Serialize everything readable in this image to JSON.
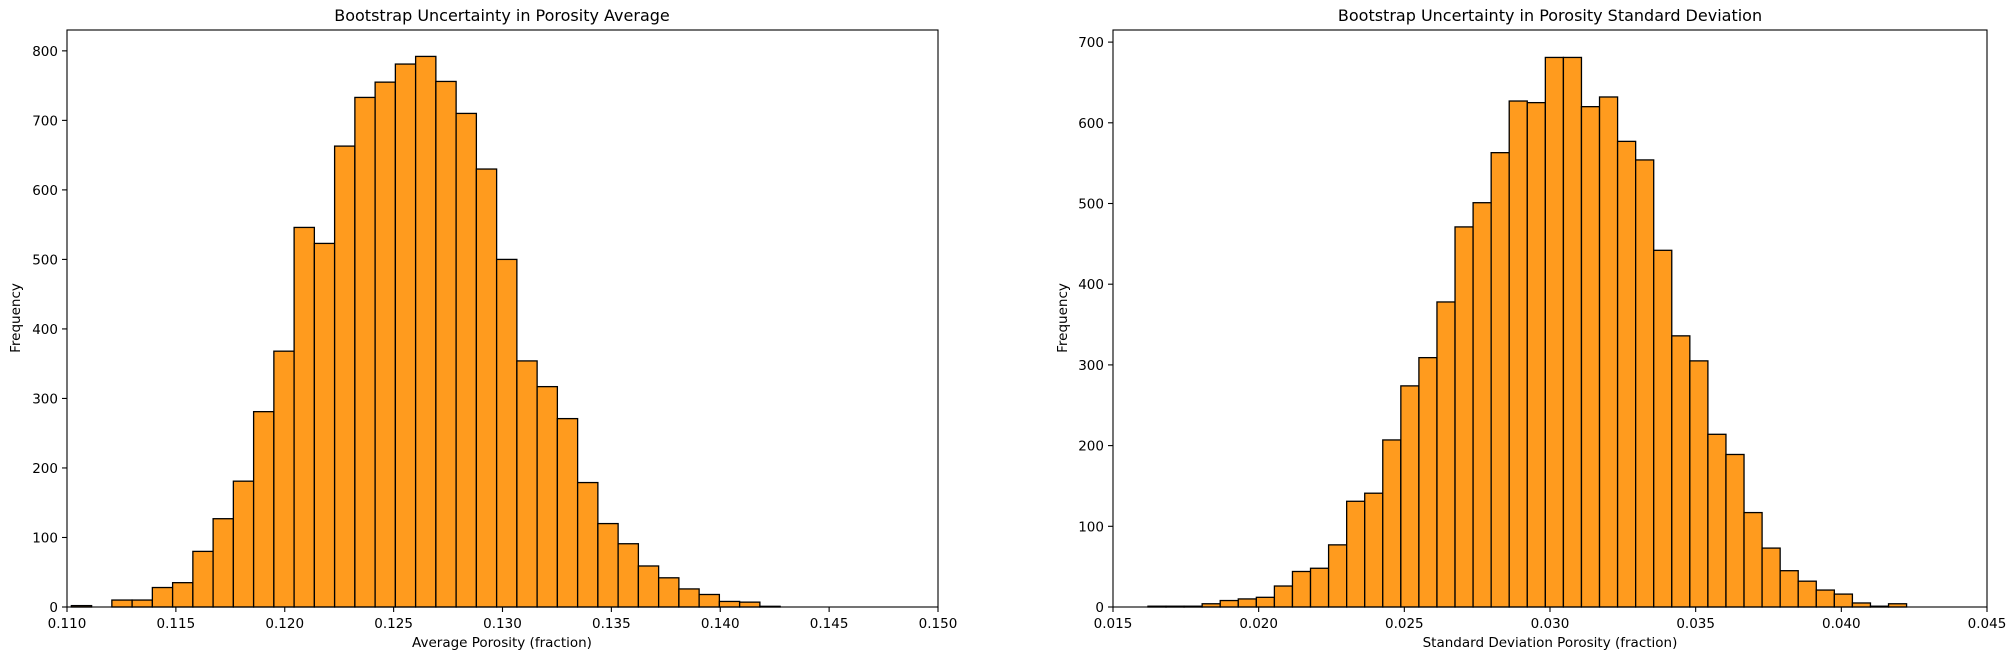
{
  "chart_data": [
    {
      "type": "histogram",
      "title": "Bootstrap Uncertainty in Porosity Average",
      "xlabel": "Average Porosity (fraction)",
      "ylabel": "Frequency",
      "xlim": [
        0.11,
        0.15
      ],
      "ylim": [
        0,
        830
      ],
      "xticks": [
        "0.110",
        "0.115",
        "0.120",
        "0.125",
        "0.130",
        "0.135",
        "0.140",
        "0.145",
        "0.150"
      ],
      "yticks": [
        "0",
        "100",
        "200",
        "300",
        "400",
        "500",
        "600",
        "700",
        "800"
      ],
      "bar_color": "#FF9B1E",
      "edge_color": "#000000",
      "bin_start": 0.1102,
      "bin_width": 0.00093,
      "values": [
        2,
        0,
        10,
        10,
        28,
        35,
        80,
        127,
        181,
        281,
        368,
        546,
        523,
        663,
        733,
        755,
        781,
        792,
        756,
        710,
        630,
        500,
        354,
        317,
        271,
        179,
        120,
        91,
        59,
        42,
        26,
        18,
        8,
        7,
        1
      ]
    },
    {
      "type": "histogram",
      "title": "Bootstrap Uncertainty in Porosity Standard Deviation",
      "xlabel": "Standard Deviation Porosity (fraction)",
      "ylabel": "Frequency",
      "xlim": [
        0.015,
        0.045
      ],
      "ylim": [
        0,
        715
      ],
      "xticks": [
        "0.015",
        "0.020",
        "0.025",
        "0.030",
        "0.035",
        "0.040",
        "0.045"
      ],
      "yticks": [
        "0",
        "100",
        "200",
        "300",
        "400",
        "500",
        "600",
        "700"
      ],
      "bar_color": "#FF9B1E",
      "edge_color": "#000000",
      "bin_start": 0.0162,
      "bin_width": 0.00062,
      "values": [
        1,
        1,
        1,
        4,
        8,
        10,
        12,
        26,
        44,
        48,
        77,
        131,
        141,
        207,
        274,
        309,
        378,
        471,
        501,
        563,
        627,
        625,
        681,
        681,
        620,
        632,
        577,
        554,
        442,
        336,
        305,
        214,
        189,
        117,
        73,
        45,
        32,
        21,
        16,
        5,
        1,
        4
      ]
    }
  ]
}
